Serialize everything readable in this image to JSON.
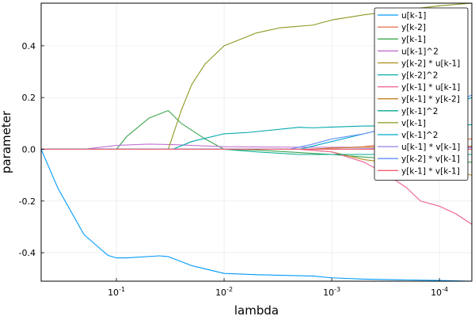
{
  "chart_data": {
    "type": "line",
    "title": "",
    "xlabel": "lambda",
    "ylabel": "parameter",
    "x_scale": "log10",
    "x_direction": "decreasing",
    "xlim": [
      0.5,
      5e-05
    ],
    "ylim": [
      -0.51,
      0.565
    ],
    "x_ticks": [
      {
        "value": 0.1,
        "label": "10^-1"
      },
      {
        "value": 0.01,
        "label": "10^-2"
      },
      {
        "value": 0.001,
        "label": "10^-3"
      },
      {
        "value": 0.0001,
        "label": "10^-4"
      }
    ],
    "y_ticks": [
      {
        "value": -0.4,
        "label": "-0.4"
      },
      {
        "value": -0.2,
        "label": "-0.2"
      },
      {
        "value": 0.0,
        "label": "0.0"
      },
      {
        "value": 0.2,
        "label": "0.2"
      },
      {
        "value": 0.4,
        "label": "0.4"
      }
    ],
    "grid": true,
    "legend_position": "top-right",
    "series": [
      {
        "name": "u[k-1]",
        "color": "#009af9",
        "x": [
          0.5,
          0.35,
          0.2,
          0.12,
          0.1,
          0.08,
          0.04,
          0.033,
          0.02,
          0.01,
          0.005,
          0.0015,
          0.001,
          0.0005,
          0.0002,
          0.0001,
          5e-05
        ],
        "y": [
          0.0,
          -0.15,
          -0.33,
          -0.41,
          -0.42,
          -0.42,
          -0.412,
          -0.415,
          -0.45,
          -0.48,
          -0.485,
          -0.49,
          -0.497,
          -0.502,
          -0.505,
          -0.507,
          -0.51
        ]
      },
      {
        "name": "y[k-2]",
        "color": "#e26f46",
        "x": [
          0.5,
          0.002,
          0.001,
          0.0005,
          0.0003,
          0.0002,
          0.00015,
          0.0001,
          5e-05
        ],
        "y": [
          0.0,
          0.0,
          0.004,
          0.01,
          0.02,
          0.025,
          0.03,
          0.035,
          0.04
        ]
      },
      {
        "name": "y[k-1]",
        "color": "#3da44d",
        "x": [
          0.5,
          0.1,
          0.08,
          0.05,
          0.033,
          0.025,
          0.015,
          0.01,
          0.005,
          0.001,
          0.0005,
          0.0002,
          5e-05
        ],
        "y": [
          0.0,
          0.0,
          0.05,
          0.12,
          0.15,
          0.1,
          0.04,
          0.0,
          -0.003,
          -0.02,
          -0.03,
          -0.04,
          -0.05
        ]
      },
      {
        "name": "u[k-1]^2",
        "color": "#c271d2",
        "x": [
          0.5,
          0.2,
          0.1,
          0.05,
          0.03,
          0.01,
          0.002,
          0.0005,
          0.0001,
          5e-05
        ],
        "y": [
          0.0,
          0.0,
          0.015,
          0.02,
          0.018,
          0.01,
          0.008,
          0.008,
          0.01,
          0.01
        ]
      },
      {
        "name": "y[k-2] * u[k-1]",
        "color": "#ac8d18",
        "x": [
          0.5,
          0.002,
          0.001,
          0.0005,
          0.0002,
          0.0001,
          5e-05
        ],
        "y": [
          0.0,
          0.0,
          -0.01,
          -0.04,
          -0.06,
          -0.08,
          -0.1
        ]
      },
      {
        "name": "y[k-2]^2",
        "color": "#00a9ad",
        "x": [
          0.5,
          0.03,
          0.02,
          0.01,
          0.006,
          0.002,
          0.0015,
          0.001,
          0.0005,
          0.0002,
          0.0001,
          5e-05
        ],
        "y": [
          0.0,
          0.0,
          0.03,
          0.06,
          0.065,
          0.085,
          0.083,
          0.086,
          0.09,
          0.09,
          0.092,
          0.095
        ]
      },
      {
        "name": "y[k-1] * u[k-1]",
        "color": "#ed5d92",
        "x": [
          0.5,
          0.002,
          0.001,
          0.0005,
          0.0003,
          0.0002,
          0.00015,
          0.0001,
          7e-05,
          5e-05
        ],
        "y": [
          0.0,
          0.0,
          -0.01,
          -0.05,
          -0.1,
          -0.15,
          -0.2,
          -0.22,
          -0.25,
          -0.29
        ]
      },
      {
        "name": "y[k-1] * y[k-2]",
        "color": "#c68125",
        "x": [
          0.5,
          0.0015,
          0.001,
          0.0005,
          0.0001,
          5e-05
        ],
        "y": [
          0.0,
          0.0,
          0.005,
          0.008,
          0.01,
          0.012
        ]
      },
      {
        "name": "y[k-1]^2",
        "color": "#00a98d",
        "x": [
          0.5,
          0.01,
          0.005,
          0.002,
          0.001,
          0.0005,
          0.0001,
          5e-05
        ],
        "y": [
          0.0,
          0.0,
          -0.01,
          -0.02,
          -0.02,
          -0.02,
          -0.02,
          -0.02
        ]
      },
      {
        "name": "v[k-1]",
        "color": "#8e971d",
        "x": [
          0.5,
          0.033,
          0.025,
          0.02,
          0.015,
          0.01,
          0.005,
          0.003,
          0.0015,
          0.001,
          0.0005,
          0.0002,
          0.0001,
          5e-05
        ],
        "y": [
          0.0,
          0.0,
          0.15,
          0.25,
          0.33,
          0.4,
          0.45,
          0.47,
          0.48,
          0.5,
          0.52,
          0.54,
          0.555,
          0.565
        ]
      },
      {
        "name": "v[k-1]^2",
        "color": "#00a8cb",
        "x": [
          0.5,
          0.002,
          0.001,
          0.0005,
          0.0002,
          0.0001,
          5e-05
        ],
        "y": [
          0.0,
          0.0,
          0.03,
          0.06,
          0.1,
          0.15,
          0.2
        ]
      },
      {
        "name": "u[k-1] * v[k-1]",
        "color": "#9b7fe9",
        "x": [
          0.5,
          0.002,
          0.001,
          0.0005,
          0.0002,
          0.0001,
          5e-05
        ],
        "y": [
          0.0,
          0.0,
          0.0,
          0.002,
          0.004,
          0.005,
          0.006
        ]
      },
      {
        "name": "y[k-2] * v[k-1]",
        "color": "#618df6",
        "x": [
          0.5,
          0.0025,
          0.0015,
          0.001,
          0.0005,
          0.0002,
          0.0001,
          5e-05
        ],
        "y": [
          0.0,
          0.0,
          0.02,
          0.04,
          0.06,
          0.1,
          0.15,
          0.21
        ]
      },
      {
        "name": "y[k-1] * v[k-1]",
        "color": "#f05f73",
        "x": [
          0.5,
          0.002,
          0.001,
          0.0005,
          0.0002,
          0.0001,
          5e-05
        ],
        "y": [
          0.0,
          0.0,
          0.0,
          0.0,
          0.0,
          0.0,
          0.0
        ]
      }
    ]
  }
}
